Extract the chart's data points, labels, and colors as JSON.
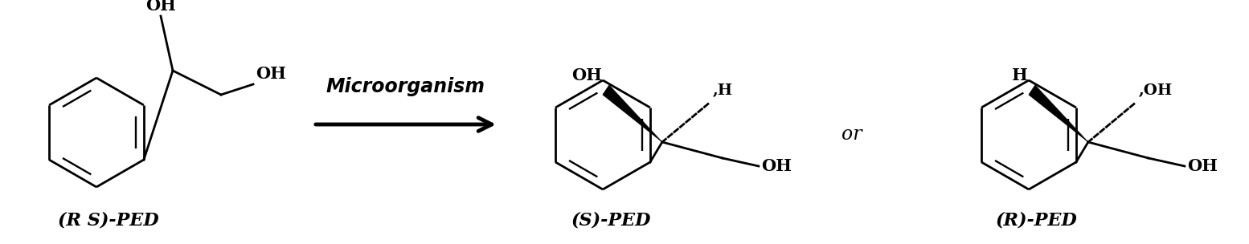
{
  "background_color": "#ffffff",
  "figure_width": 15.54,
  "figure_height": 3.04,
  "dpi": 100,
  "arrow_label": "Microorganism",
  "or_text": "or",
  "label_rs": "(R S)-PED",
  "label_s": "(S)-PED",
  "label_r": "(R)-PED",
  "text_color": "#000000",
  "line_color": "#000000"
}
